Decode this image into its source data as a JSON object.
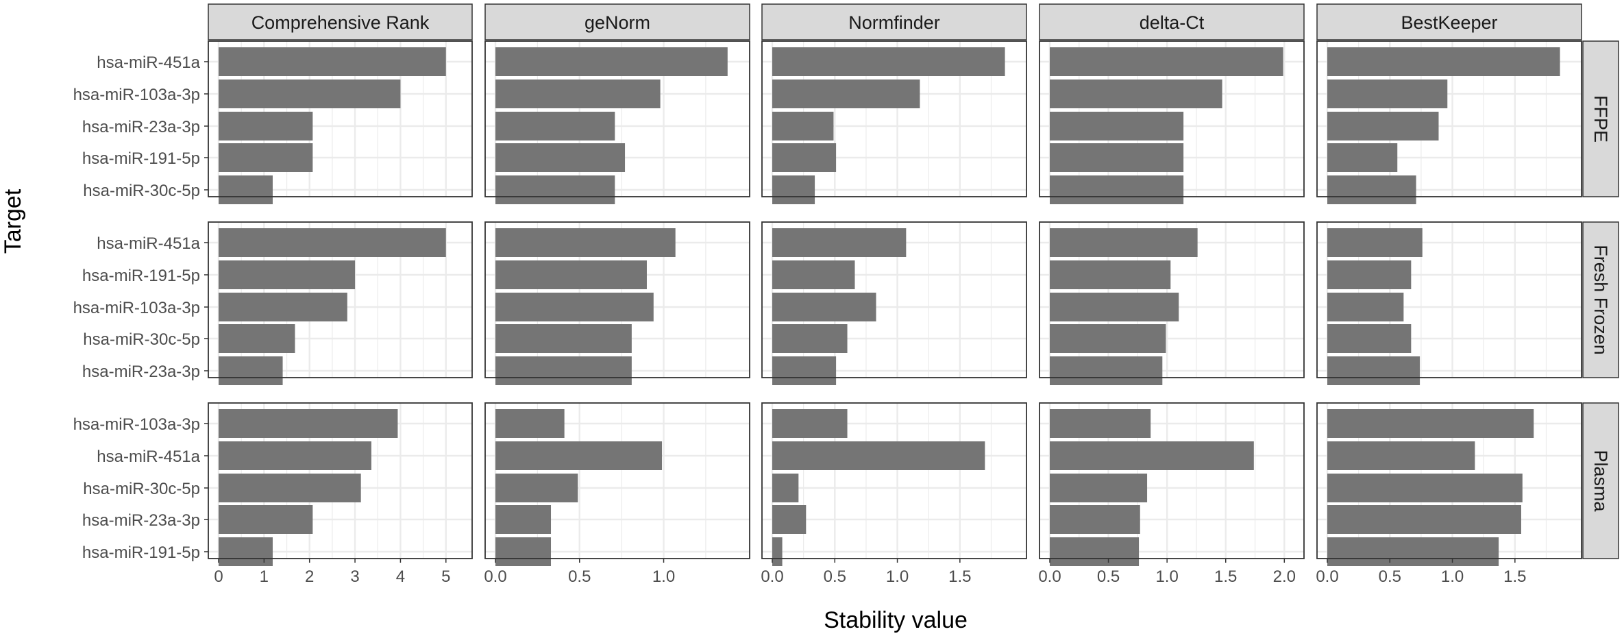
{
  "chart_data": {
    "type": "bar",
    "orientation": "horizontal",
    "facet": "grid",
    "xlabel": "Stability value",
    "ylabel": "Target",
    "grid": true,
    "legend": "none",
    "colors": {
      "bar": "#757575",
      "strip": "#d9d9d9",
      "grid": "#ebebeb",
      "panel_border": "#333333"
    },
    "columns": [
      {
        "name": "Comprehensive Rank",
        "xlim": [
          0,
          5.35
        ],
        "ticks": [
          0,
          1,
          2,
          3,
          4,
          5
        ],
        "tick_labels": [
          "0",
          "1",
          "2",
          "3",
          "4",
          "5"
        ]
      },
      {
        "name": "geNorm",
        "xlim": [
          0,
          1.45
        ],
        "ticks": [
          0,
          0.5,
          1.0
        ],
        "tick_labels": [
          "0.0",
          "0.5",
          "1.0"
        ]
      },
      {
        "name": "Normfinder",
        "xlim": [
          0,
          1.95
        ],
        "ticks": [
          0,
          0.5,
          1.0,
          1.5
        ],
        "tick_labels": [
          "0.0",
          "0.5",
          "1.0",
          "1.5"
        ]
      },
      {
        "name": "delta-Ct",
        "xlim": [
          0,
          2.08
        ],
        "ticks": [
          0,
          0.5,
          1.0,
          1.5,
          2.0
        ],
        "tick_labels": [
          "0.0",
          "0.5",
          "1.0",
          "1.5",
          "2.0"
        ]
      },
      {
        "name": "BestKeeper",
        "xlim": [
          0,
          1.95
        ],
        "ticks": [
          0,
          0.5,
          1.0,
          1.5
        ],
        "tick_labels": [
          "0.0",
          "0.5",
          "1.0",
          "1.5"
        ]
      }
    ],
    "rows": [
      {
        "name": "FFPE",
        "categories": [
          "hsa-miR-451a",
          "hsa-miR-103a-3p",
          "hsa-miR-23a-3p",
          "hsa-miR-191-5p",
          "hsa-miR-30c-5p"
        ],
        "values": [
          [
            5.0,
            4.0,
            2.07,
            2.07,
            1.19
          ],
          [
            1.38,
            0.98,
            0.71,
            0.77,
            0.71
          ],
          [
            1.86,
            1.18,
            0.49,
            0.51,
            0.34
          ],
          [
            1.99,
            1.47,
            1.14,
            1.14,
            1.14
          ],
          [
            1.86,
            0.96,
            0.89,
            0.56,
            0.71
          ]
        ]
      },
      {
        "name": "Fresh Frozen",
        "categories": [
          "hsa-miR-451a",
          "hsa-miR-191-5p",
          "hsa-miR-103a-3p",
          "hsa-miR-30c-5p",
          "hsa-miR-23a-3p"
        ],
        "values": [
          [
            5.0,
            3.0,
            2.83,
            1.68,
            1.41
          ],
          [
            1.07,
            0.9,
            0.94,
            0.81,
            0.81
          ],
          [
            1.07,
            0.66,
            0.83,
            0.6,
            0.51
          ],
          [
            1.26,
            1.03,
            1.1,
            0.99,
            0.96
          ],
          [
            0.76,
            0.67,
            0.61,
            0.67,
            0.74
          ]
        ]
      },
      {
        "name": "Plasma",
        "categories": [
          "hsa-miR-103a-3p",
          "hsa-miR-451a",
          "hsa-miR-30c-5p",
          "hsa-miR-23a-3p",
          "hsa-miR-191-5p"
        ],
        "values": [
          [
            3.94,
            3.36,
            3.13,
            2.07,
            1.19
          ],
          [
            0.41,
            0.99,
            0.49,
            0.33,
            0.33
          ],
          [
            0.6,
            1.7,
            0.21,
            0.27,
            0.08
          ],
          [
            0.86,
            1.74,
            0.83,
            0.77,
            0.76
          ],
          [
            1.65,
            1.18,
            1.56,
            1.55,
            1.37
          ]
        ]
      }
    ]
  }
}
